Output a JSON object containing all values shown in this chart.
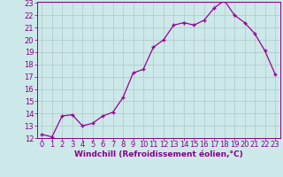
{
  "x": [
    0,
    1,
    2,
    3,
    4,
    5,
    6,
    7,
    8,
    9,
    10,
    11,
    12,
    13,
    14,
    15,
    16,
    17,
    18,
    19,
    20,
    21,
    22,
    23
  ],
  "y": [
    12.3,
    12.1,
    13.8,
    13.9,
    13.0,
    13.2,
    13.8,
    14.1,
    15.3,
    17.3,
    17.6,
    19.4,
    20.0,
    21.2,
    21.4,
    21.2,
    21.6,
    22.6,
    23.2,
    22.0,
    21.4,
    20.5,
    19.1,
    17.2
  ],
  "line_color": "#990099",
  "marker": "+",
  "marker_size": 3.5,
  "marker_linewidth": 1.0,
  "bg_color": "#cce8e8",
  "grid_color": "#b0c8c8",
  "xlabel": "Windchill (Refroidissement éolien,°C)",
  "xlabel_color": "#880088",
  "tick_color": "#880088",
  "ylim": [
    12,
    23
  ],
  "xlim": [
    -0.5,
    23.5
  ],
  "yticks": [
    12,
    13,
    14,
    15,
    16,
    17,
    18,
    19,
    20,
    21,
    22,
    23
  ],
  "xticks": [
    0,
    1,
    2,
    3,
    4,
    5,
    6,
    7,
    8,
    9,
    10,
    11,
    12,
    13,
    14,
    15,
    16,
    17,
    18,
    19,
    20,
    21,
    22,
    23
  ],
  "tick_fontsize": 6,
  "xlabel_fontsize": 6.5,
  "xlabel_fontweight": "bold"
}
